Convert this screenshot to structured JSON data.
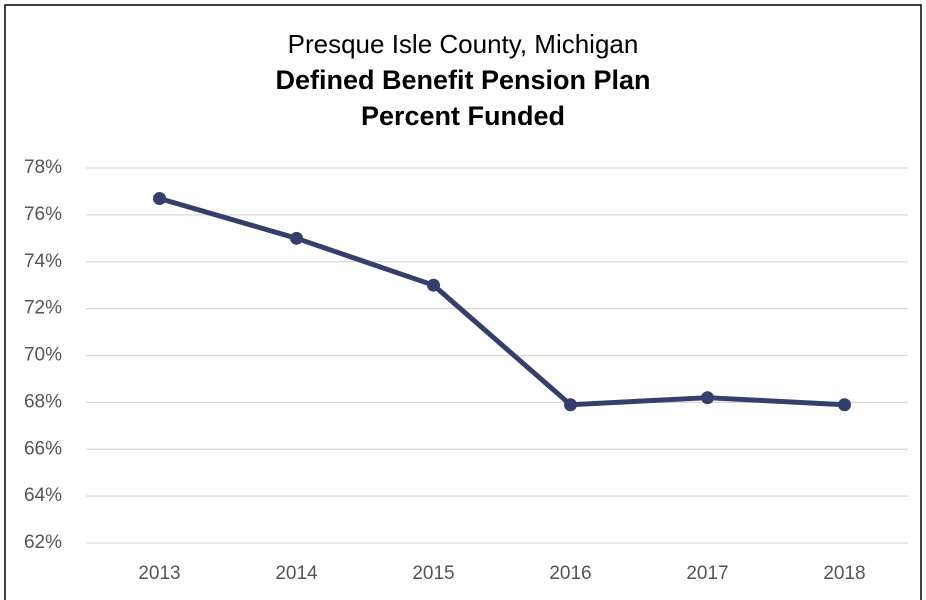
{
  "chart_data": {
    "type": "line",
    "title": [
      "Presque Isle County, Michigan",
      "Defined Benefit Pension Plan",
      "Percent Funded"
    ],
    "categories": [
      "2013",
      "2014",
      "2015",
      "2016",
      "2017",
      "2018"
    ],
    "series": [
      {
        "name": "Percent Funded",
        "color": "#353f6b",
        "values": [
          76.7,
          75.0,
          73.0,
          67.9,
          68.2,
          67.9
        ]
      }
    ],
    "ylim": [
      62,
      78
    ],
    "yticks": [
      {
        "value": 62,
        "label": "62%"
      },
      {
        "value": 64,
        "label": "64%"
      },
      {
        "value": 66,
        "label": "66%"
      },
      {
        "value": 68,
        "label": "68%"
      },
      {
        "value": 70,
        "label": "70%"
      },
      {
        "value": 72,
        "label": "72%"
      },
      {
        "value": 74,
        "label": "74%"
      },
      {
        "value": 76,
        "label": "76%"
      },
      {
        "value": 78,
        "label": "78%"
      }
    ],
    "grid": true
  }
}
